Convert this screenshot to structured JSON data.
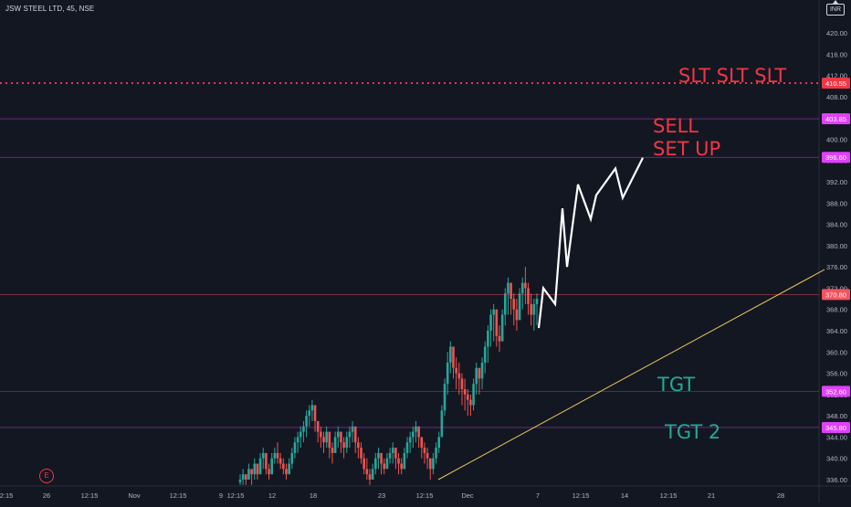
{
  "header": {
    "symbol_title": "JSW STEEL LTD, 45, NSE",
    "currency_label": "INR"
  },
  "earnings_badge": {
    "label": "E"
  },
  "chart_data": {
    "type": "candlestick",
    "y_axis": {
      "ylim": [
        334,
        424
      ],
      "ticks": [
        336,
        340,
        344,
        348,
        352,
        356,
        360,
        364,
        368,
        372,
        376,
        380,
        384,
        388,
        392,
        396,
        400,
        404,
        408,
        412,
        416,
        420
      ],
      "tick_labels": [
        "336.00",
        "340.00",
        "344.00",
        "348.00",
        "352.00",
        "356.00",
        "360.00",
        "364.00",
        "368.00",
        "372.00",
        "376.00",
        "380.00",
        "384.00",
        "388.00",
        "392.00",
        "396.00",
        "400.00",
        "404.00",
        "408.00",
        "412.00",
        "416.00",
        "420.00"
      ]
    },
    "x_axis": {
      "tick_labels": [
        "2:15",
        "26",
        "12:15",
        "Nov",
        "12:15",
        "9",
        "12:15",
        "12",
        "18",
        "23",
        "12:15",
        "Dec",
        "7",
        "12:15",
        "14",
        "12:15",
        "21",
        "28"
      ]
    },
    "price_lines": [
      {
        "value": 410.55,
        "label": "410.55",
        "color": "#f23645",
        "style": "dotted"
      },
      {
        "value": 403.85,
        "label": "403.85",
        "color": "#e040fb",
        "style": "solid"
      },
      {
        "value": 396.6,
        "label": "396.60",
        "color": "#e040fb",
        "style": "solid"
      },
      {
        "value": 370.8,
        "label": "370.80",
        "color": "#f7525f",
        "style": "solid"
      },
      {
        "value": 352.6,
        "label": "352.60",
        "color": "#e040fb",
        "style": "solid"
      },
      {
        "value": 345.8,
        "label": "345.80",
        "color": "#e040fb",
        "style": "solid"
      }
    ],
    "annotations": [
      {
        "text": "SLT SLT SLT",
        "color": "#f23645"
      },
      {
        "text": "SELL",
        "color": "#f23645"
      },
      {
        "text": "SET UP",
        "color": "#f23645"
      },
      {
        "text": "TGT",
        "color": "#22ab94"
      },
      {
        "text": "TGT 2",
        "color": "#22ab94"
      }
    ],
    "trendline": {
      "color": "#e6c65c",
      "from": 336,
      "to": 375.5
    },
    "projection_path": [
      364.5,
      372,
      369,
      387,
      376,
      391.5,
      385,
      389.5,
      394.5,
      389,
      396.5
    ],
    "candles_hlc": [
      [
        337,
        335,
        336
      ],
      [
        338,
        335,
        337
      ],
      [
        337,
        335,
        336
      ],
      [
        339,
        336,
        338
      ],
      [
        338,
        335,
        337
      ],
      [
        340,
        336,
        339
      ],
      [
        339,
        336,
        337
      ],
      [
        341,
        337,
        340
      ],
      [
        342,
        338,
        341
      ],
      [
        340,
        337,
        338
      ],
      [
        339,
        336,
        337
      ],
      [
        341,
        337,
        340
      ],
      [
        342,
        339,
        341
      ],
      [
        343,
        339,
        340
      ],
      [
        341,
        338,
        339
      ],
      [
        340,
        337,
        338
      ],
      [
        339,
        336,
        337
      ],
      [
        340,
        337,
        339
      ],
      [
        342,
        338,
        341
      ],
      [
        344,
        340,
        343
      ],
      [
        345,
        341,
        344
      ],
      [
        346,
        342,
        345
      ],
      [
        347,
        343,
        346
      ],
      [
        349,
        344,
        348
      ],
      [
        350,
        346,
        349
      ],
      [
        351,
        347,
        350
      ],
      [
        349,
        345,
        347
      ],
      [
        347,
        343,
        345
      ],
      [
        346,
        342,
        344
      ],
      [
        345,
        341,
        343
      ],
      [
        346,
        342,
        345
      ],
      [
        344,
        340,
        342
      ],
      [
        343,
        339,
        341
      ],
      [
        345,
        341,
        344
      ],
      [
        346,
        342,
        345
      ],
      [
        345,
        341,
        343
      ],
      [
        344,
        340,
        342
      ],
      [
        345,
        341,
        344
      ],
      [
        346,
        342,
        345
      ],
      [
        347,
        343,
        346
      ],
      [
        345,
        341,
        343
      ],
      [
        344,
        340,
        342
      ],
      [
        343,
        339,
        340
      ],
      [
        341,
        337,
        338
      ],
      [
        340,
        336,
        337
      ],
      [
        338,
        335,
        336
      ],
      [
        339,
        336,
        338
      ],
      [
        341,
        337,
        340
      ],
      [
        342,
        338,
        341
      ],
      [
        341,
        337,
        339
      ],
      [
        340,
        337,
        338
      ],
      [
        341,
        338,
        340
      ],
      [
        342,
        339,
        341
      ],
      [
        343,
        339,
        342
      ],
      [
        342,
        338,
        340
      ],
      [
        341,
        337,
        339
      ],
      [
        340,
        337,
        338
      ],
      [
        342,
        338,
        341
      ],
      [
        344,
        340,
        343
      ],
      [
        345,
        341,
        344
      ],
      [
        346,
        342,
        345
      ],
      [
        347,
        343,
        346
      ],
      [
        346,
        342,
        344
      ],
      [
        344,
        340,
        342
      ],
      [
        343,
        339,
        341
      ],
      [
        342,
        338,
        340
      ],
      [
        340,
        336,
        338
      ],
      [
        341,
        337,
        340
      ],
      [
        343,
        339,
        342
      ],
      [
        345,
        341,
        344
      ],
      [
        350,
        344,
        349
      ],
      [
        355,
        348,
        354
      ],
      [
        360,
        352,
        358
      ],
      [
        362,
        356,
        361
      ],
      [
        361,
        355,
        357
      ],
      [
        359,
        353,
        356
      ],
      [
        358,
        352,
        355
      ],
      [
        356,
        350,
        353
      ],
      [
        355,
        349,
        352
      ],
      [
        353,
        348,
        351
      ],
      [
        352,
        348,
        350
      ],
      [
        355,
        349,
        354
      ],
      [
        358,
        352,
        357
      ],
      [
        357,
        352,
        355
      ],
      [
        359,
        353,
        358
      ],
      [
        362,
        356,
        361
      ],
      [
        365,
        358,
        364
      ],
      [
        368,
        361,
        367
      ],
      [
        369,
        362,
        368
      ],
      [
        367,
        361,
        363
      ],
      [
        365,
        360,
        362
      ],
      [
        368,
        362,
        367
      ],
      [
        372,
        365,
        371
      ],
      [
        374,
        367,
        373
      ],
      [
        373,
        367,
        370
      ],
      [
        371,
        365,
        368
      ],
      [
        370,
        364,
        366
      ],
      [
        372,
        366,
        371
      ],
      [
        374,
        368,
        373
      ],
      [
        376,
        369,
        372
      ],
      [
        373,
        367,
        369
      ],
      [
        371,
        365,
        367
      ],
      [
        370,
        364,
        369
      ],
      [
        371,
        365,
        370
      ]
    ]
  }
}
